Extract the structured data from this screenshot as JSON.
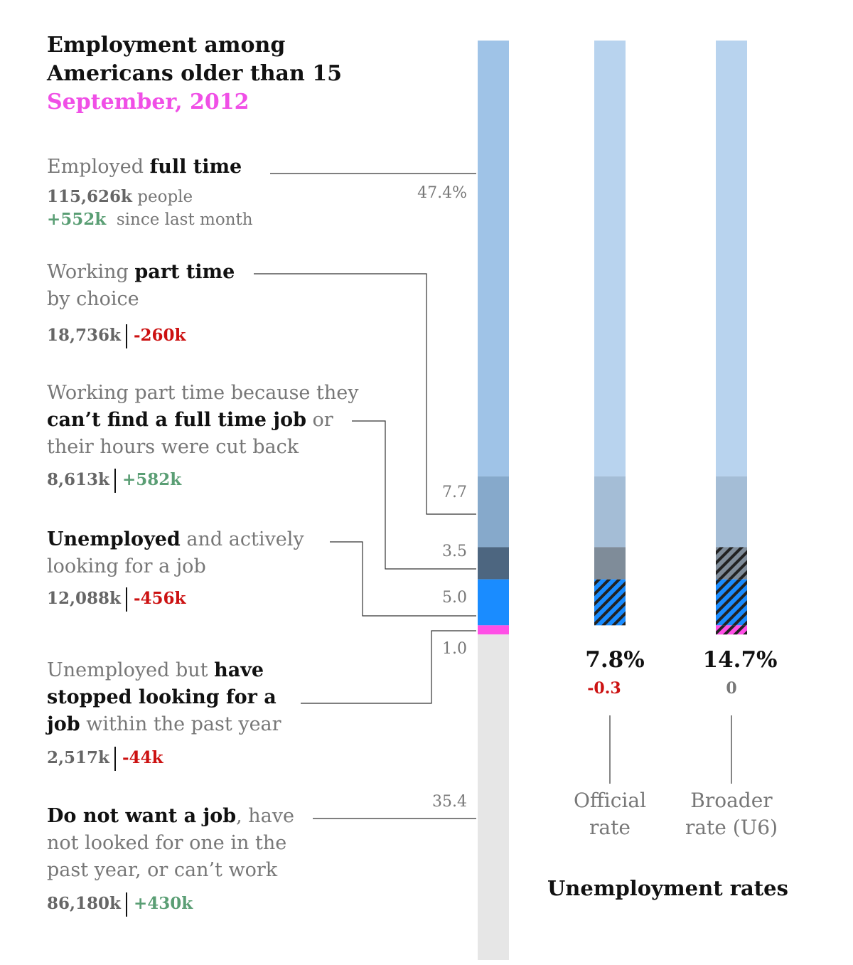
{
  "chart_data": {
    "type": "bar",
    "title_line1": "Employment among",
    "title_line2": "Americans older than 15",
    "subtitle": "September, 2012",
    "categories": [
      {
        "key": "full_time",
        "pre": "Employed ",
        "bold": "full time",
        "post": "",
        "count": "115,626k",
        "count_suffix": " people",
        "change": "+552k",
        "change_suffix": "  since last month",
        "share": 47.4,
        "share_label": "47.4%",
        "color": "#9fc3e7"
      },
      {
        "key": "part_time_choice",
        "pre": "Working ",
        "bold": "part time",
        "post": "by choice",
        "count": "18,736k",
        "change": "-260k",
        "share": 7.7,
        "share_label": "7.7",
        "color": "#86a9cb"
      },
      {
        "key": "part_time_economic",
        "pre": "Working part time because they",
        "bold": "can’t find a full time job",
        "post": " or",
        "post2": "their hours were cut back",
        "count": "8,613k",
        "change": "+582k",
        "share": 3.5,
        "share_label": "3.5",
        "color": "#4d6680"
      },
      {
        "key": "unemployed",
        "pre": "",
        "bold": "Unemployed",
        "post": " and actively",
        "post2": "looking for a job",
        "count": "12,088k",
        "change": "-456k",
        "share": 5.0,
        "share_label": "5.0",
        "color": "#1a8cff"
      },
      {
        "key": "stopped_looking",
        "pre": "Unemployed but ",
        "bold": "have",
        "bold2": "stopped looking for a",
        "bold3": "job",
        "post": " within the past year",
        "count": "2,517k",
        "change": "-44k",
        "share": 1.0,
        "share_label": "1.0",
        "color": "#ff4fe6"
      },
      {
        "key": "not_want",
        "pre": "",
        "bold": "Do not want a job",
        "post": ", have",
        "post2": "not looked for one in the",
        "post3": "past year, or can’t work",
        "count": "86,180k",
        "change": "+430k",
        "share": 35.4,
        "share_label": "35.4",
        "color": "#e6e6e6"
      }
    ],
    "rates": [
      {
        "name_line1": "Official",
        "name_line2": "rate",
        "value": "7.8%",
        "change": "-0.3"
      },
      {
        "name_line1": "Broader",
        "name_line2": "rate (U6)",
        "value": "14.7%",
        "change": "0"
      }
    ],
    "rates_title": "Unemployment rates"
  }
}
